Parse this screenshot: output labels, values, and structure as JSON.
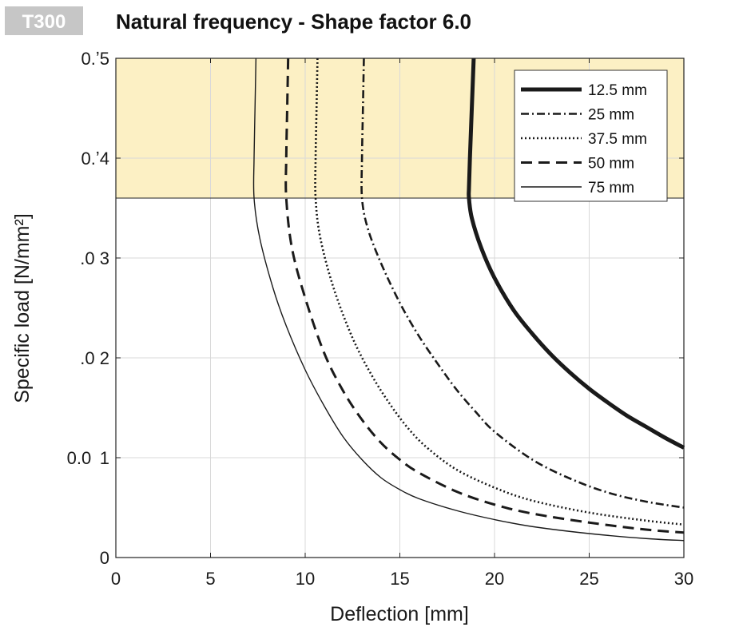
{
  "badge": {
    "text": "T300"
  },
  "chart_data": {
    "type": "line",
    "title": "Natural frequency - Shape factor 6.0",
    "xlabel": "Deflection  [mm]",
    "ylabel": "Specific load [N/mm²]",
    "xlim": [
      0,
      30
    ],
    "ylim": [
      0,
      0.05
    ],
    "x_ticks": [
      0,
      5,
      10,
      15,
      20,
      25,
      30
    ],
    "x_tick_labels": [
      "0",
      "5",
      "10",
      "15",
      "20",
      "25",
      "30"
    ],
    "y_ticks": [
      0,
      0.01,
      0.02,
      0.03,
      0.04,
      0.05
    ],
    "y_tick_labels": [
      "0",
      "0.0  1",
      ".0 2",
      ".0 3",
      "0.ʼ4",
      "0.ʼ5"
    ],
    "grid": true,
    "highlight_band": {
      "y_from": 0.036,
      "y_to": 0.05,
      "color": "#fcf0c4"
    },
    "legend_position": "top-right",
    "series": [
      {
        "name": "12.5 mm",
        "style": "solid-thick",
        "points": [
          [
            18.9,
            0.05
          ],
          [
            18.8,
            0.045
          ],
          [
            18.7,
            0.04
          ],
          [
            18.65,
            0.037
          ],
          [
            18.65,
            0.036
          ],
          [
            18.8,
            0.034
          ],
          [
            19.3,
            0.031
          ],
          [
            20.0,
            0.028
          ],
          [
            21.0,
            0.0248
          ],
          [
            22.0,
            0.0224
          ],
          [
            23.0,
            0.0203
          ],
          [
            24.0,
            0.0185
          ],
          [
            25.0,
            0.0169
          ],
          [
            26.0,
            0.0155
          ],
          [
            27.0,
            0.0142
          ],
          [
            28.0,
            0.0131
          ],
          [
            29.0,
            0.012
          ],
          [
            30.0,
            0.011
          ]
        ]
      },
      {
        "name": "25 mm",
        "style": "dash-dot",
        "points": [
          [
            13.1,
            0.05
          ],
          [
            13.05,
            0.045
          ],
          [
            13.0,
            0.04
          ],
          [
            13.0,
            0.036
          ],
          [
            13.3,
            0.033
          ],
          [
            14.0,
            0.0295
          ],
          [
            15.0,
            0.0255
          ],
          [
            16.0,
            0.0222
          ],
          [
            17.0,
            0.0194
          ],
          [
            18.0,
            0.0168
          ],
          [
            19.0,
            0.0146
          ],
          [
            20.0,
            0.0126
          ],
          [
            22.0,
            0.0098
          ],
          [
            24.0,
            0.0079
          ],
          [
            26.0,
            0.0065
          ],
          [
            28.0,
            0.0056
          ],
          [
            30.0,
            0.005
          ]
        ]
      },
      {
        "name": "37.5 mm",
        "style": "dotted",
        "points": [
          [
            10.65,
            0.05
          ],
          [
            10.6,
            0.045
          ],
          [
            10.55,
            0.04
          ],
          [
            10.55,
            0.036
          ],
          [
            10.8,
            0.032
          ],
          [
            11.5,
            0.027
          ],
          [
            12.5,
            0.022
          ],
          [
            13.5,
            0.0183
          ],
          [
            14.5,
            0.0153
          ],
          [
            15.5,
            0.0128
          ],
          [
            16.5,
            0.0109
          ],
          [
            18.0,
            0.0088
          ],
          [
            20.0,
            0.007
          ],
          [
            22.0,
            0.0057
          ],
          [
            25.0,
            0.0045
          ],
          [
            28.0,
            0.0037
          ],
          [
            30.0,
            0.0033
          ]
        ]
      },
      {
        "name": "50 mm",
        "style": "dashed",
        "points": [
          [
            9.1,
            0.05
          ],
          [
            9.05,
            0.045
          ],
          [
            9.0,
            0.04
          ],
          [
            9.0,
            0.036
          ],
          [
            9.3,
            0.031
          ],
          [
            10.0,
            0.026
          ],
          [
            11.0,
            0.0205
          ],
          [
            12.0,
            0.0167
          ],
          [
            13.0,
            0.0138
          ],
          [
            14.0,
            0.0115
          ],
          [
            15.0,
            0.0098
          ],
          [
            16.0,
            0.0085
          ],
          [
            18.0,
            0.0066
          ],
          [
            20.0,
            0.0053
          ],
          [
            22.0,
            0.0044
          ],
          [
            25.0,
            0.0035
          ],
          [
            28.0,
            0.0028
          ],
          [
            30.0,
            0.0025
          ]
        ]
      },
      {
        "name": "75 mm",
        "style": "solid-thin",
        "points": [
          [
            7.4,
            0.05
          ],
          [
            7.35,
            0.045
          ],
          [
            7.3,
            0.04
          ],
          [
            7.3,
            0.036
          ],
          [
            7.6,
            0.032
          ],
          [
            8.3,
            0.027
          ],
          [
            9.0,
            0.0232
          ],
          [
            10.0,
            0.0188
          ],
          [
            11.0,
            0.0152
          ],
          [
            12.0,
            0.0121
          ],
          [
            13.0,
            0.0098
          ],
          [
            14.0,
            0.008
          ],
          [
            15.0,
            0.0068
          ],
          [
            16.0,
            0.0059
          ],
          [
            18.0,
            0.0047
          ],
          [
            20.0,
            0.0038
          ],
          [
            22.0,
            0.0031
          ],
          [
            25.0,
            0.0024
          ],
          [
            28.0,
            0.0019
          ],
          [
            30.0,
            0.0017
          ]
        ]
      }
    ]
  }
}
